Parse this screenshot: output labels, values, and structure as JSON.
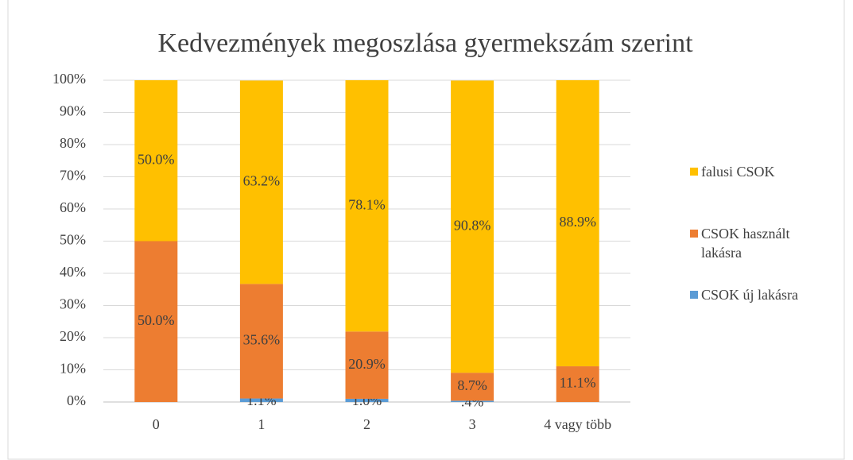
{
  "chart_data": {
    "type": "stacked_bar",
    "title": "Kedvezmények megoszlása gyermekszám szerint",
    "categories": [
      "0",
      "1",
      "2",
      "3",
      "4 vagy több"
    ],
    "series": [
      {
        "name": "CSOK új lakásra",
        "color": "#5b9bd5",
        "values": [
          0,
          1.1,
          1.0,
          0.4,
          0
        ],
        "value_labels": [
          null,
          "1.1%",
          "1.0%",
          ".4%",
          null
        ]
      },
      {
        "name": "CSOK használt lakásra",
        "color": "#ed7d31",
        "values": [
          50.0,
          35.6,
          20.9,
          8.7,
          11.1
        ],
        "value_labels": [
          "50.0%",
          "35.6%",
          "20.9%",
          "8.7%",
          "11.1%"
        ]
      },
      {
        "name": "falusi CSOK",
        "color": "#ffc000",
        "values": [
          50.0,
          63.2,
          78.1,
          90.8,
          88.9
        ],
        "value_labels": [
          "50.0%",
          "63.2%",
          "78.1%",
          "90.8%",
          "88.9%"
        ]
      }
    ],
    "ylim": [
      0,
      100
    ],
    "yticks": [
      {
        "value": 0,
        "label": "0%"
      },
      {
        "value": 10,
        "label": "10%"
      },
      {
        "value": 20,
        "label": "20%"
      },
      {
        "value": 30,
        "label": "30%"
      },
      {
        "value": 40,
        "label": "40%"
      },
      {
        "value": 50,
        "label": "50%"
      },
      {
        "value": 60,
        "label": "60%"
      },
      {
        "value": 70,
        "label": "70%"
      },
      {
        "value": 80,
        "label": "80%"
      },
      {
        "value": 90,
        "label": "90%"
      },
      {
        "value": 100,
        "label": "100%"
      }
    ],
    "grid": true,
    "legend": "right"
  }
}
